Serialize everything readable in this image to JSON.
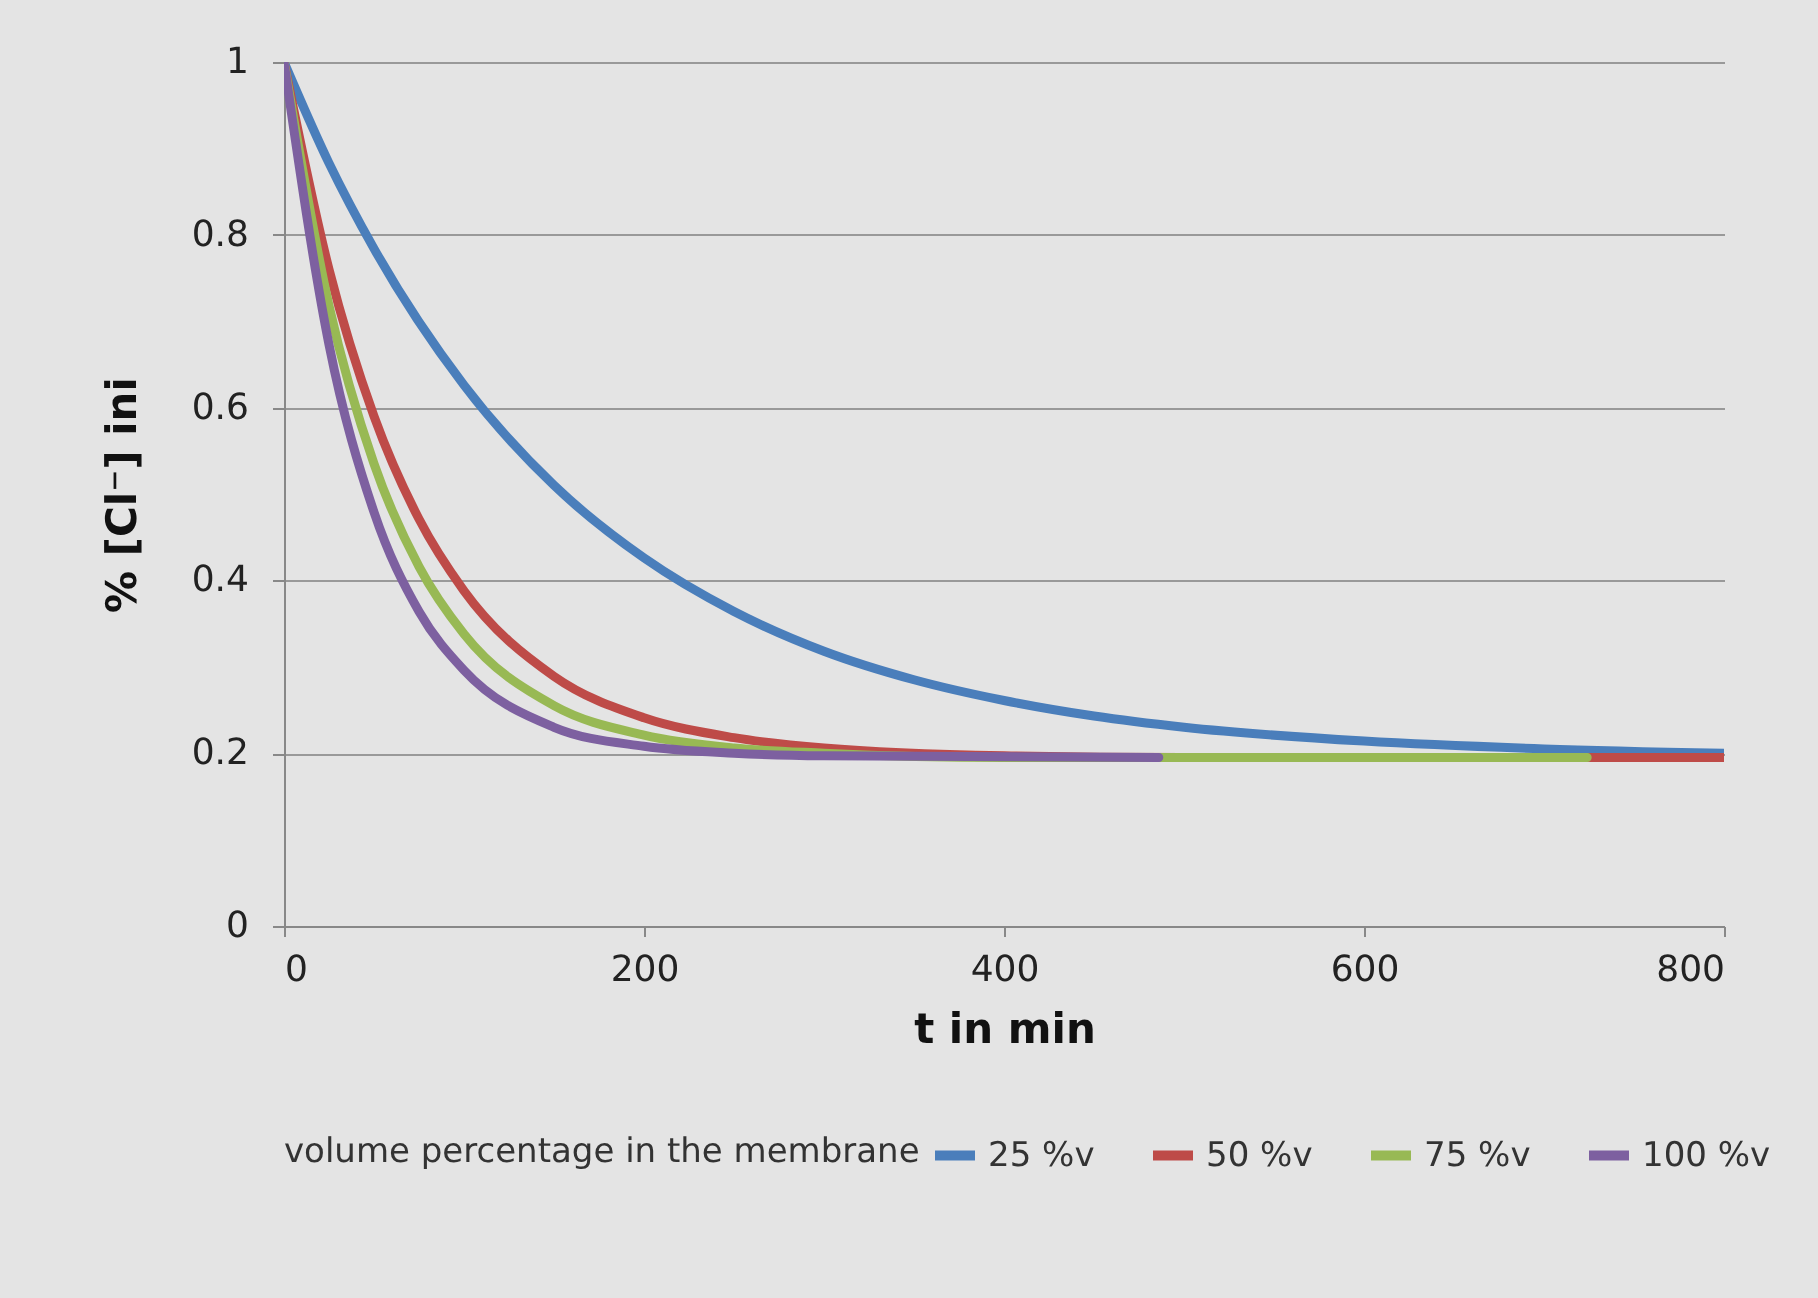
{
  "chart_data": {
    "type": "line",
    "xlabel": "t in min",
    "ylabel": "% [Cl⁻] ini",
    "legend_title": "volume percentage in the membrane",
    "xlim": [
      0,
      800
    ],
    "xticks": [
      0,
      200,
      400,
      600,
      800
    ],
    "ylim": [
      0,
      1
    ],
    "yticks": [
      0,
      0.2,
      0.4,
      0.6,
      0.8,
      1
    ],
    "grid": "y",
    "legend": "bottom",
    "marker": "none",
    "line_style": "solid",
    "series": [
      {
        "name": "25 %v",
        "color": "#4a7ebb",
        "x": [
          0,
          25,
          50,
          100,
          150,
          200,
          250,
          300,
          350,
          400,
          450,
          500,
          600,
          700,
          800
        ],
        "values": [
          1,
          0.883,
          0.784,
          0.626,
          0.51,
          0.426,
          0.364,
          0.318,
          0.285,
          0.261,
          0.243,
          0.23,
          0.214,
          0.205,
          0.2
        ]
      },
      {
        "name": "50 %v",
        "color": "#be4b48",
        "x": [
          0,
          25,
          50,
          75,
          100,
          150,
          200,
          250,
          300,
          400,
          500,
          800
        ],
        "values": [
          1,
          0.76,
          0.59,
          0.471,
          0.388,
          0.289,
          0.241,
          0.218,
          0.206,
          0.197,
          0.195,
          0.195
        ]
      },
      {
        "name": "75 %v",
        "color": "#98b954",
        "x": [
          0,
          25,
          50,
          75,
          100,
          150,
          200,
          250,
          300,
          400,
          724
        ],
        "values": [
          1,
          0.718,
          0.535,
          0.416,
          0.338,
          0.255,
          0.221,
          0.206,
          0.2,
          0.195,
          0.195
        ]
      },
      {
        "name": "100 %v",
        "color": "#7d60a0",
        "x": [
          0,
          25,
          50,
          75,
          100,
          150,
          200,
          250,
          300,
          486
        ],
        "values": [
          1,
          0.673,
          0.479,
          0.364,
          0.296,
          0.23,
          0.208,
          0.2,
          0.197,
          0.195
        ]
      }
    ]
  }
}
